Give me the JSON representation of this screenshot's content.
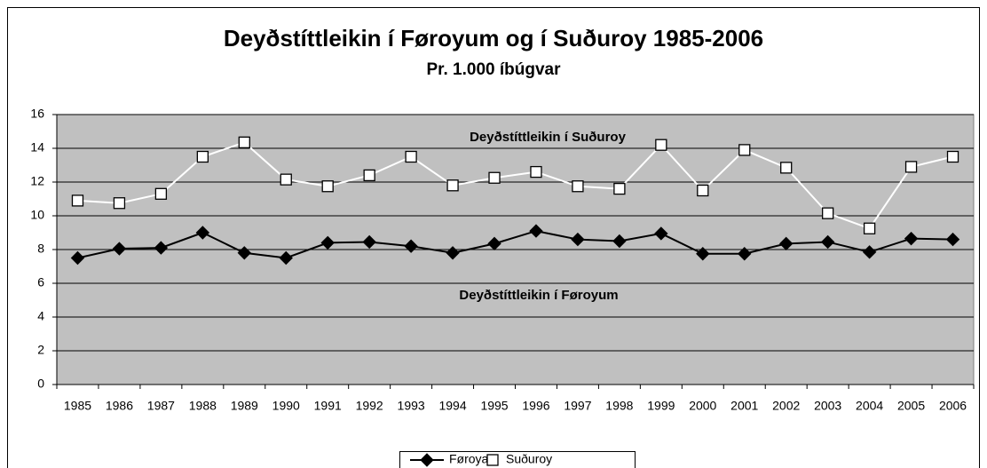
{
  "chart_data": {
    "type": "line",
    "title": "Deyðstíttleikin í Føroyum og í Suðuroy 1985-2006",
    "subtitle": "Pr. 1.000 íbúgvar",
    "annotations": [
      "Deyðstíttleikin í Suðuroy",
      "Deyðstíttleikin í Føroyum"
    ],
    "categories": [
      "1985",
      "1986",
      "1987",
      "1988",
      "1989",
      "1990",
      "1991",
      "1992",
      "1993",
      "1994",
      "1995",
      "1996",
      "1997",
      "1998",
      "1999",
      "2000",
      "2001",
      "2002",
      "2003",
      "2004",
      "2005",
      "2006"
    ],
    "series": [
      {
        "name": "Føroyar",
        "color": "#000000",
        "marker": "diamond",
        "marker_fill": "#000000",
        "values": [
          7.5,
          8.05,
          8.1,
          9.0,
          7.8,
          7.5,
          8.4,
          8.45,
          8.2,
          7.8,
          8.35,
          9.1,
          8.6,
          8.5,
          8.95,
          7.75,
          7.75,
          8.35,
          8.45,
          7.85,
          8.65,
          8.6
        ]
      },
      {
        "name": "Suðuroy",
        "color": "#ffffff",
        "marker": "square",
        "marker_fill": "#ffffff",
        "values": [
          10.9,
          10.75,
          11.3,
          13.5,
          14.35,
          12.15,
          11.75,
          12.4,
          13.5,
          11.8,
          12.25,
          12.6,
          11.75,
          11.6,
          14.2,
          11.5,
          13.9,
          12.85,
          10.15,
          9.25,
          12.9,
          13.5
        ]
      }
    ],
    "ylim": [
      0,
      16
    ],
    "yticks": [
      0,
      2,
      4,
      6,
      8,
      10,
      12,
      14,
      16
    ],
    "grid": true,
    "plot_background": "#c0c0c0",
    "legend": "bottom"
  }
}
